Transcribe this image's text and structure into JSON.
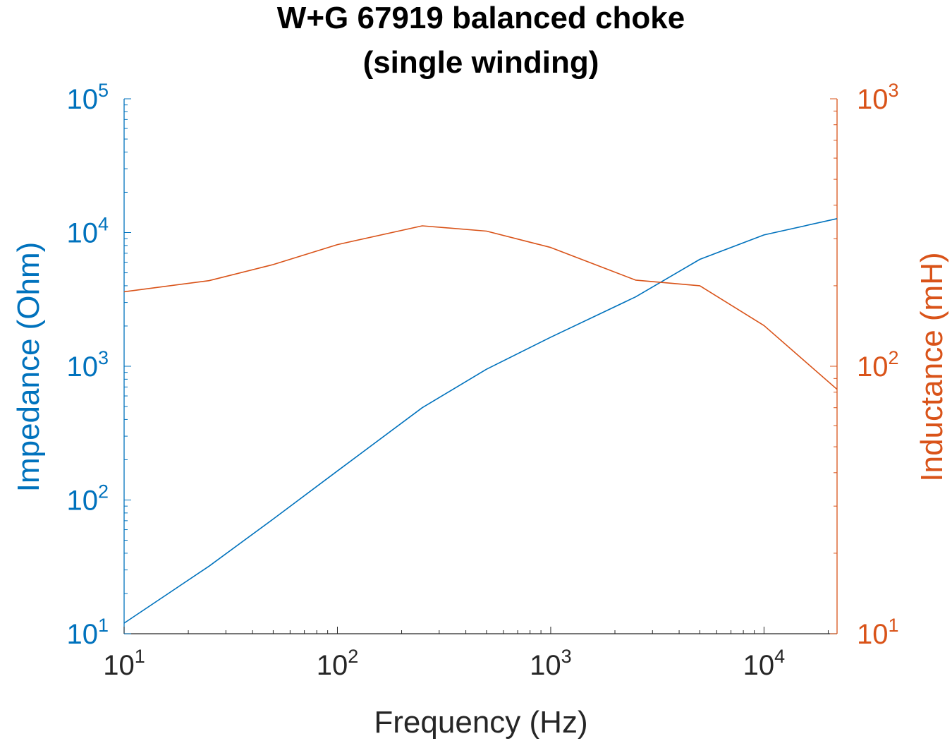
{
  "chart_data": {
    "type": "line",
    "title_lines": [
      "W+G 67919 balanced choke",
      "(single winding)"
    ],
    "xlabel": "Frequency (Hz)",
    "ylabel_left": "Impedance (Ohm)",
    "ylabel_right": "Inductance (mH)",
    "x_scale": "log",
    "y_left_scale": "log",
    "y_right_scale": "log",
    "xlim": [
      10,
      22000
    ],
    "ylim_left": [
      10,
      100000
    ],
    "ylim_right": [
      10,
      1000
    ],
    "x_ticks": [
      {
        "base": "10",
        "exp": "1"
      },
      {
        "base": "10",
        "exp": "2"
      },
      {
        "base": "10",
        "exp": "3"
      },
      {
        "base": "10",
        "exp": "4"
      }
    ],
    "y_left_ticks": [
      {
        "base": "10",
        "exp": "1"
      },
      {
        "base": "10",
        "exp": "2"
      },
      {
        "base": "10",
        "exp": "3"
      },
      {
        "base": "10",
        "exp": "4"
      },
      {
        "base": "10",
        "exp": "5"
      }
    ],
    "y_right_ticks": [
      {
        "base": "10",
        "exp": "1"
      },
      {
        "base": "10",
        "exp": "2"
      },
      {
        "base": "10",
        "exp": "3"
      }
    ],
    "grid": false,
    "colors": {
      "left": "#0072BD",
      "right": "#D95319",
      "text": "#262626"
    },
    "series": [
      {
        "axis": "left",
        "color": "#0072BD",
        "x": [
          10,
          25,
          50,
          100,
          250,
          500,
          1000,
          2500,
          5000,
          10000,
          22000
        ],
        "y": [
          12,
          32,
          72,
          165,
          490,
          950,
          1650,
          3300,
          6300,
          9600,
          12700
        ]
      },
      {
        "axis": "right",
        "color": "#D95319",
        "x": [
          10,
          25,
          50,
          100,
          250,
          500,
          1000,
          2500,
          5000,
          10000,
          22000
        ],
        "y": [
          190,
          209,
          240,
          285,
          335,
          320,
          278,
          210,
          200,
          142,
          82
        ]
      }
    ]
  }
}
